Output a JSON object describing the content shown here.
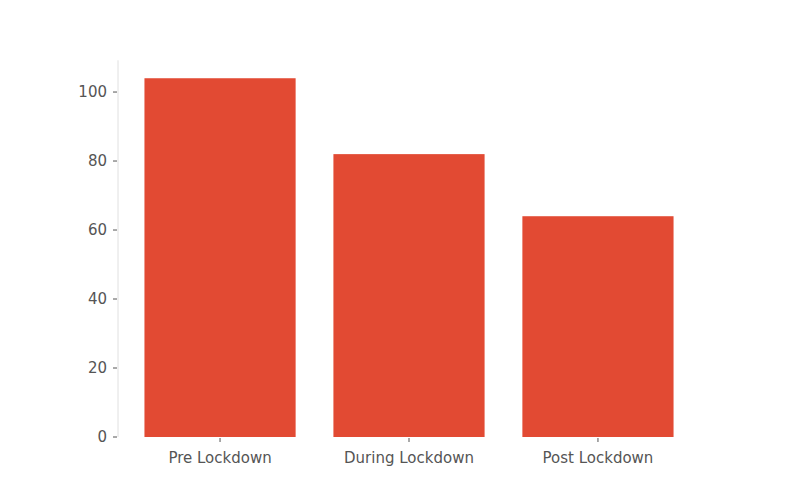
{
  "chart_data": {
    "type": "bar",
    "categories": [
      "Pre Lockdown",
      "During Lockdown",
      "Post Lockdown"
    ],
    "values": [
      104,
      82,
      64
    ],
    "color": "#e24a33",
    "ylim": [
      0,
      109.2
    ],
    "yticks": [
      0,
      20,
      40,
      60,
      80,
      100
    ],
    "grid": false
  }
}
